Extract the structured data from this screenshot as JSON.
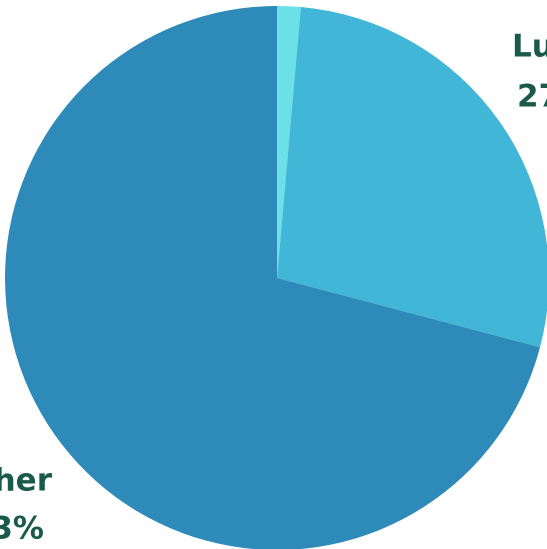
{
  "chart_data": {
    "type": "pie",
    "values": [
      1.4,
      27.7,
      70.9
    ],
    "colors": [
      "#6be0e6",
      "#42b6d6",
      "#2e8ab8"
    ],
    "annotations": [
      "Lu",
      "27",
      "her",
      "3%"
    ]
  }
}
